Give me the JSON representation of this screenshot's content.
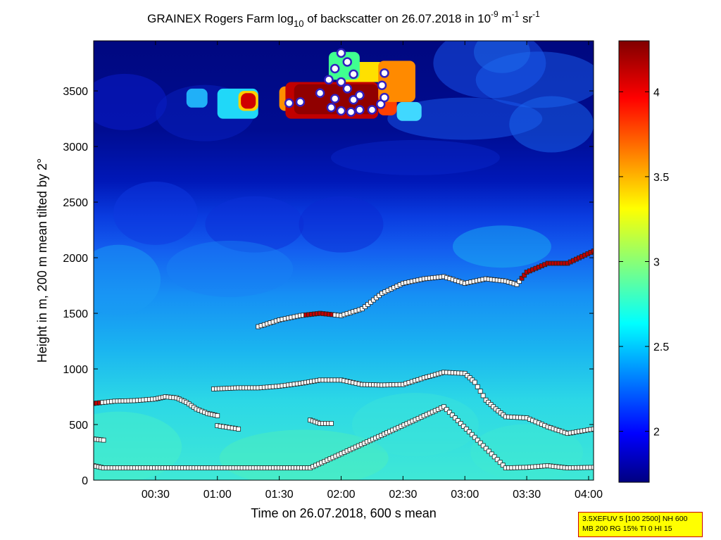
{
  "chart_data": {
    "type": "heatmap",
    "title_parts": {
      "prefix": "GRAINEX Rogers Farm log",
      "prefix_sub": "10",
      "middle": " of backscatter on 26.07.2018 in 10",
      "exp1": "-9",
      "mid2": " m",
      "exp2": "-1",
      "mid3": " sr",
      "exp3": "-1"
    },
    "xlabel": "Time on 26.07.2018, 600 s mean",
    "ylabel": "Height in m, 200 m mean tilted by 2°",
    "x_ticks": [
      "00:30",
      "01:00",
      "01:30",
      "02:00",
      "02:30",
      "03:00",
      "03:30",
      "04:00"
    ],
    "y_ticks": [
      "0",
      "500",
      "1000",
      "1500",
      "2000",
      "2500",
      "3000",
      "3500"
    ],
    "xlim_hours": [
      0.0,
      4.04
    ],
    "ylim_m": [
      0,
      3950
    ],
    "colorbar": {
      "ticks": [
        "2",
        "2.5",
        "3",
        "3.5",
        "4"
      ],
      "range": [
        1.7,
        4.3
      ]
    },
    "heatmap_field_description_free": true,
    "layers": [
      {
        "name": "",
        "points": [
          [
            0.0,
            690
          ],
          [
            0.17,
            710
          ],
          [
            0.33,
            715
          ],
          [
            0.5,
            730
          ],
          [
            0.58,
            750
          ],
          [
            0.67,
            740
          ],
          [
            0.75,
            700
          ],
          [
            0.83,
            640
          ],
          [
            0.92,
            600
          ],
          [
            1.0,
            580
          ]
        ]
      },
      {
        "name": "",
        "points": [
          [
            0.97,
            820
          ],
          [
            1.17,
            830
          ],
          [
            1.33,
            830
          ],
          [
            1.5,
            845
          ],
          [
            1.67,
            870
          ],
          [
            1.83,
            900
          ],
          [
            2.0,
            900
          ],
          [
            2.17,
            860
          ],
          [
            2.33,
            855
          ],
          [
            2.5,
            860
          ],
          [
            2.67,
            920
          ],
          [
            2.83,
            970
          ],
          [
            3.0,
            960
          ],
          [
            3.08,
            880
          ],
          [
            3.17,
            720
          ],
          [
            3.25,
            640
          ],
          [
            3.33,
            570
          ],
          [
            3.5,
            560
          ],
          [
            3.67,
            480
          ],
          [
            3.83,
            420
          ],
          [
            4.04,
            460
          ]
        ]
      },
      {
        "name": "",
        "points": [
          [
            1.33,
            1380
          ],
          [
            1.5,
            1440
          ],
          [
            1.67,
            1480
          ],
          [
            1.83,
            1500
          ],
          [
            2.0,
            1480
          ],
          [
            2.17,
            1540
          ],
          [
            2.33,
            1680
          ],
          [
            2.5,
            1770
          ],
          [
            2.67,
            1810
          ],
          [
            2.83,
            1830
          ],
          [
            3.0,
            1770
          ],
          [
            3.17,
            1810
          ],
          [
            3.33,
            1790
          ],
          [
            3.42,
            1760
          ],
          [
            3.5,
            1870
          ],
          [
            3.67,
            1950
          ],
          [
            3.83,
            1950
          ],
          [
            4.04,
            2060
          ]
        ]
      },
      {
        "name": "",
        "points": [
          [
            1.75,
            540
          ],
          [
            1.83,
            510
          ],
          [
            1.92,
            510
          ]
        ]
      },
      {
        "name": "",
        "points": [
          [
            1.0,
            490
          ],
          [
            1.17,
            460
          ]
        ]
      },
      {
        "name": "",
        "points": [
          [
            0.0,
            370
          ],
          [
            0.08,
            360
          ]
        ]
      },
      {
        "name": "",
        "points": [
          [
            0.0,
            130
          ],
          [
            0.08,
            110
          ],
          [
            1.75,
            110
          ],
          [
            2.83,
            660
          ],
          [
            3.33,
            110
          ],
          [
            3.5,
            115
          ],
          [
            3.67,
            130
          ],
          [
            3.83,
            110
          ],
          [
            4.04,
            115
          ]
        ]
      }
    ],
    "cloud_points": [
      [
        1.58,
        3390
      ],
      [
        1.67,
        3400
      ],
      [
        1.83,
        3480
      ],
      [
        1.9,
        3600
      ],
      [
        1.95,
        3700
      ],
      [
        2.0,
        3840
      ],
      [
        2.05,
        3760
      ],
      [
        2.1,
        3650
      ],
      [
        1.92,
        3350
      ],
      [
        2.0,
        3320
      ],
      [
        2.08,
        3310
      ],
      [
        2.15,
        3330
      ],
      [
        2.25,
        3330
      ],
      [
        2.32,
        3380
      ],
      [
        2.35,
        3440
      ],
      [
        2.33,
        3550
      ],
      [
        2.35,
        3660
      ],
      [
        2.05,
        3520
      ],
      [
        2.1,
        3420
      ],
      [
        2.0,
        3580
      ],
      [
        1.95,
        3430
      ],
      [
        2.15,
        3460
      ]
    ]
  },
  "infobox": {
    "line1": "3.5XEFUV 5 [100 2500] NH 600",
    "line2": "MB 200 RG 15% TI 0 HI 15"
  }
}
